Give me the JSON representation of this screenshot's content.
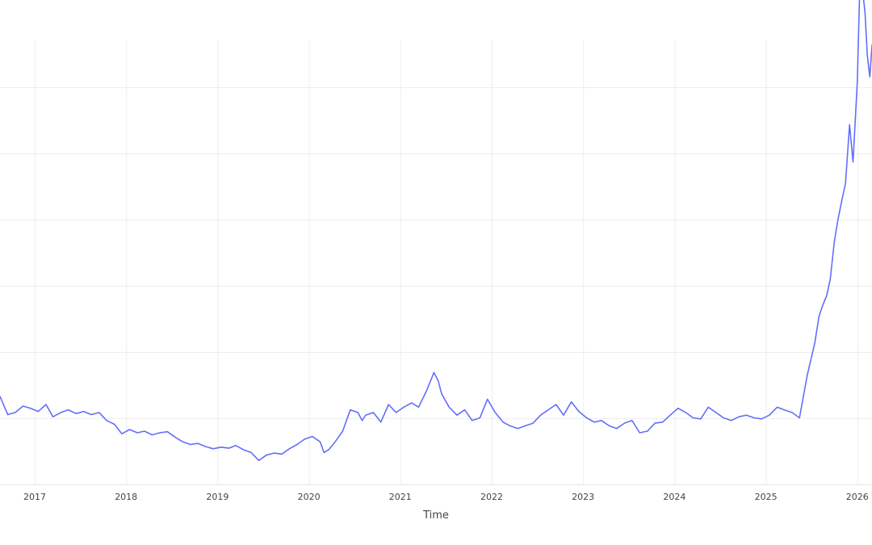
{
  "chart_data": {
    "type": "line",
    "title": "",
    "xlabel": "Time",
    "ylabel": "",
    "x_tick_labels": [
      "2017",
      "2018",
      "2019",
      "2020",
      "2021",
      "2022",
      "2023",
      "2024",
      "2025",
      "2026"
    ],
    "grid": true,
    "legend": "none",
    "colors": {
      "line": "#636efa",
      "grid": "#eeeeee",
      "axis_line": "#e5e5e5",
      "text": "#444444"
    },
    "series": [
      {
        "x": [
          "2016-08-15",
          "2016-09-15",
          "2016-10-15",
          "2016-11-15",
          "2016-12-15",
          "2017-01-15",
          "2017-02-15",
          "2017-03-15",
          "2017-04-15",
          "2017-05-15",
          "2017-06-15",
          "2017-07-15",
          "2017-08-15",
          "2017-09-15",
          "2017-10-15",
          "2017-11-15",
          "2017-12-15",
          "2018-01-15",
          "2018-02-15",
          "2018-03-15",
          "2018-04-15",
          "2018-05-15",
          "2018-06-15",
          "2018-07-15",
          "2018-08-15",
          "2018-09-15",
          "2018-10-15",
          "2018-11-15",
          "2018-12-15",
          "2019-01-15",
          "2019-02-15",
          "2019-03-15",
          "2019-04-15",
          "2019-05-15",
          "2019-06-15",
          "2019-07-15",
          "2019-08-15",
          "2019-09-15",
          "2019-10-15",
          "2019-11-15",
          "2019-12-15",
          "2020-01-15",
          "2020-02-15",
          "2020-03-01",
          "2020-03-20",
          "2020-04-15",
          "2020-05-15",
          "2020-06-15",
          "2020-07-15",
          "2020-08-01",
          "2020-08-15",
          "2020-09-15",
          "2020-10-15",
          "2020-11-15",
          "2020-12-15",
          "2021-01-15",
          "2021-02-15",
          "2021-03-15",
          "2021-04-15",
          "2021-05-15",
          "2021-06-01",
          "2021-06-15",
          "2021-07-15",
          "2021-08-15",
          "2021-09-15",
          "2021-10-15",
          "2021-11-15",
          "2021-12-15",
          "2022-01-15",
          "2022-02-15",
          "2022-03-15",
          "2022-04-15",
          "2022-05-15",
          "2022-06-15",
          "2022-07-15",
          "2022-08-15",
          "2022-09-15",
          "2022-10-15",
          "2022-11-15",
          "2022-12-15",
          "2023-01-15",
          "2023-02-15",
          "2023-03-15",
          "2023-04-15",
          "2023-05-15",
          "2023-06-15",
          "2023-07-15",
          "2023-08-15",
          "2023-09-15",
          "2023-10-15",
          "2023-11-15",
          "2023-12-15",
          "2024-01-15",
          "2024-02-15",
          "2024-03-15",
          "2024-04-15",
          "2024-05-15",
          "2024-06-15",
          "2024-07-15",
          "2024-08-15",
          "2024-09-15",
          "2024-10-15",
          "2024-11-15",
          "2024-12-15",
          "2025-01-15",
          "2025-02-15",
          "2025-03-15",
          "2025-04-15",
          "2025-05-15",
          "2025-06-15",
          "2025-07-15",
          "2025-08-01",
          "2025-08-15",
          "2025-09-01",
          "2025-09-15",
          "2025-10-01",
          "2025-10-15",
          "2025-11-01",
          "2025-11-15",
          "2025-12-01",
          "2025-12-15",
          "2026-01-01",
          "2026-01-15",
          "2026-01-25",
          "2026-02-01",
          "2026-02-10",
          "2026-02-20",
          "2026-03-01"
        ],
        "y": [
          1.4,
          1.06,
          1.1,
          1.22,
          1.18,
          1.12,
          1.25,
          1.02,
          1.1,
          1.15,
          1.08,
          1.12,
          1.06,
          1.1,
          0.95,
          0.88,
          0.7,
          0.78,
          0.72,
          0.75,
          0.68,
          0.72,
          0.74,
          0.64,
          0.55,
          0.5,
          0.52,
          0.46,
          0.42,
          0.45,
          0.43,
          0.48,
          0.4,
          0.35,
          0.2,
          0.3,
          0.34,
          0.32,
          0.42,
          0.5,
          0.6,
          0.65,
          0.55,
          0.35,
          0.4,
          0.55,
          0.75,
          1.15,
          1.1,
          0.95,
          1.05,
          1.1,
          0.92,
          1.25,
          1.1,
          1.2,
          1.28,
          1.2,
          1.5,
          1.85,
          1.7,
          1.45,
          1.2,
          1.05,
          1.15,
          0.95,
          1.0,
          1.35,
          1.1,
          0.92,
          0.85,
          0.8,
          0.85,
          0.9,
          1.05,
          1.15,
          1.25,
          1.05,
          1.3,
          1.12,
          1.0,
          0.92,
          0.95,
          0.85,
          0.8,
          0.9,
          0.95,
          0.72,
          0.75,
          0.9,
          0.92,
          1.05,
          1.18,
          1.1,
          1.0,
          0.98,
          1.2,
          1.1,
          1.0,
          0.95,
          1.02,
          1.05,
          1.0,
          0.98,
          1.05,
          1.2,
          1.15,
          1.1,
          1.0,
          1.8,
          2.4,
          2.9,
          3.1,
          3.3,
          3.6,
          4.3,
          4.7,
          5.1,
          5.4,
          6.5,
          5.8,
          7.3,
          9.8,
          8.9,
          8.6,
          7.8,
          7.4,
          8.0
        ]
      }
    ]
  }
}
